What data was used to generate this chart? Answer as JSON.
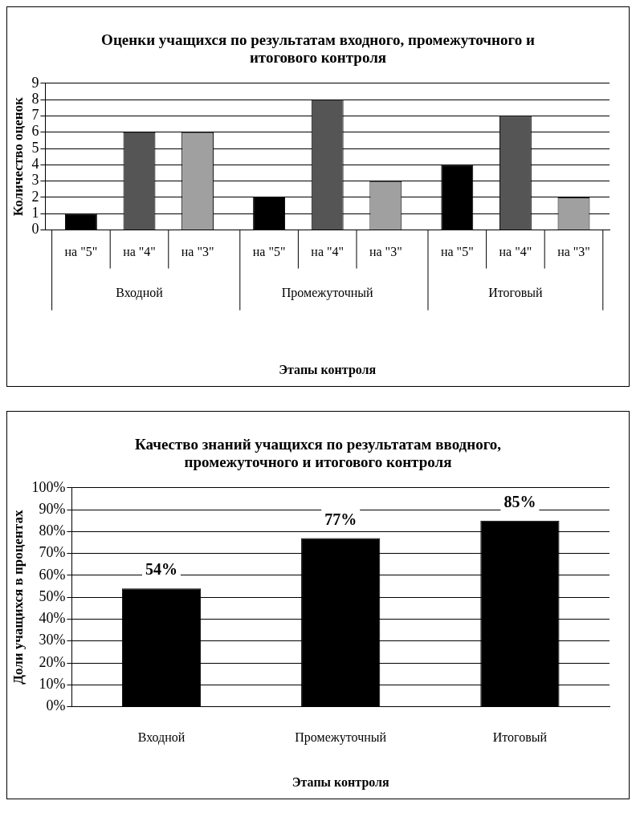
{
  "chart_data": [
    {
      "type": "bar",
      "title": "Оценки учащихся по результатам входного, промежуточного и итогового контроля",
      "xlabel": "Этапы контроля",
      "ylabel": "Количество оценок",
      "categories": [
        "Входной",
        "Промежуточный",
        "Итоговый"
      ],
      "series": [
        {
          "name": "на \"5\"",
          "color": "#000000",
          "values": [
            1,
            2,
            4
          ]
        },
        {
          "name": "на \"4\"",
          "color": "#555555",
          "values": [
            6,
            8,
            7
          ]
        },
        {
          "name": "на \"3\"",
          "color": "#a0a0a0",
          "values": [
            6,
            3,
            2
          ]
        }
      ],
      "ylim": [
        0,
        9
      ],
      "yticks": [
        0,
        1,
        2,
        3,
        4,
        5,
        6,
        7,
        8,
        9
      ],
      "grid": "y",
      "legend": false
    },
    {
      "type": "bar",
      "title": "Качество знаний учащихся по результатам вводного, промежуточного и итогового контроля",
      "xlabel": "Этапы контроля",
      "ylabel": "Доли учащихся в процентах",
      "categories": [
        "Входной",
        "Промежуточный",
        "Итоговый"
      ],
      "series": [
        {
          "color": "#000000",
          "values": [
            54,
            77,
            85
          ],
          "value_labels": [
            "54%",
            "77%",
            "85%"
          ]
        }
      ],
      "ylim": [
        0,
        100
      ],
      "yticks": [
        {
          "value": 0,
          "label": "0%"
        },
        {
          "value": 10,
          "label": "10%"
        },
        {
          "value": 20,
          "label": "20%"
        },
        {
          "value": 30,
          "label": "30%"
        },
        {
          "value": 40,
          "label": "40%"
        },
        {
          "value": 50,
          "label": "50%"
        },
        {
          "value": 60,
          "label": "60%"
        },
        {
          "value": 70,
          "label": "70%"
        },
        {
          "value": 80,
          "label": "80%"
        },
        {
          "value": 90,
          "label": "90%"
        },
        {
          "value": 100,
          "label": "100%"
        }
      ],
      "grid": "y",
      "legend": false
    }
  ]
}
